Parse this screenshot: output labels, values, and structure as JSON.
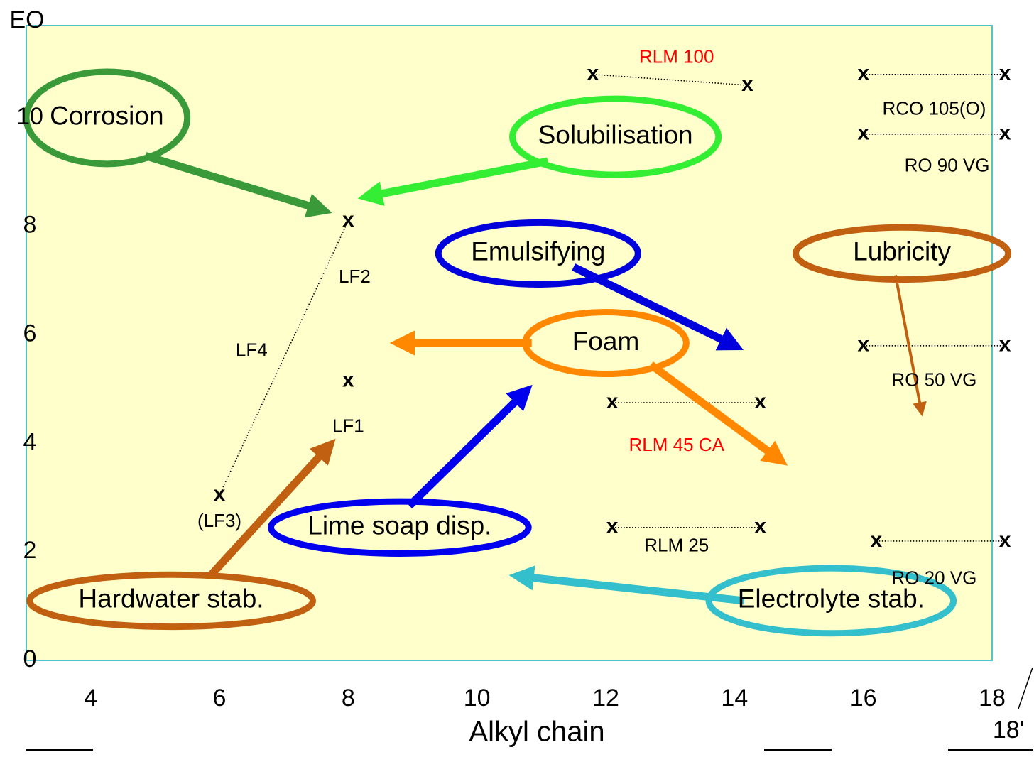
{
  "chart_data": {
    "type": "scatter",
    "xlabel": "Alkyl chain",
    "ylabel": "EO",
    "xlim": [
      3,
      18
    ],
    "ylim": [
      0,
      11.7
    ],
    "x_ticks": [
      "4",
      "6",
      "8",
      "10",
      "12",
      "14",
      "16",
      "18"
    ],
    "y_ticks": [
      "0",
      "2",
      "4",
      "6",
      "8",
      "10"
    ],
    "extra_tick_label": "18'",
    "grid": false,
    "background": "#ffffcc",
    "frame_color": "#4fc3c8",
    "marker": "x",
    "points": [
      {
        "x": 6,
        "y": 3.05
      },
      {
        "x": 8,
        "y": 8.1
      },
      {
        "x": 8,
        "y": 5.15
      },
      {
        "x": 11.8,
        "y": 10.8
      },
      {
        "x": 14.2,
        "y": 10.6
      },
      {
        "x": 16,
        "y": 10.8
      },
      {
        "x": 18.2,
        "y": 10.8
      },
      {
        "x": 16,
        "y": 9.7
      },
      {
        "x": 18.2,
        "y": 9.7
      },
      {
        "x": 16,
        "y": 5.8
      },
      {
        "x": 18.2,
        "y": 5.8
      },
      {
        "x": 12.1,
        "y": 4.75
      },
      {
        "x": 14.4,
        "y": 4.75
      },
      {
        "x": 12.1,
        "y": 2.45
      },
      {
        "x": 14.4,
        "y": 2.45
      },
      {
        "x": 16.2,
        "y": 2.2
      },
      {
        "x": 18.2,
        "y": 2.2
      }
    ],
    "series": [
      {
        "name": "LF4",
        "points": [
          [
            6,
            3.05
          ],
          [
            8,
            8.1
          ]
        ]
      },
      {
        "name": "RLM 100",
        "points": [
          [
            11.8,
            10.8
          ],
          [
            14.2,
            10.6
          ]
        ]
      },
      {
        "name": "RCO 105(O)",
        "points": [
          [
            16,
            10.8
          ],
          [
            18.2,
            10.8
          ]
        ]
      },
      {
        "name": "RO 90 VG",
        "points": [
          [
            16,
            9.7
          ],
          [
            18.2,
            9.7
          ]
        ]
      },
      {
        "name": "RO 50 VG",
        "points": [
          [
            16,
            5.8
          ],
          [
            18.2,
            5.8
          ]
        ]
      },
      {
        "name": "RLM 45 CA",
        "points": [
          [
            12.1,
            4.75
          ],
          [
            14.4,
            4.75
          ]
        ]
      },
      {
        "name": "RLM 25",
        "points": [
          [
            12.1,
            2.45
          ],
          [
            14.4,
            2.45
          ]
        ]
      },
      {
        "name": "RO 20 VG",
        "points": [
          [
            16.2,
            2.2
          ],
          [
            18.2,
            2.2
          ]
        ]
      }
    ],
    "point_labels": [
      {
        "text": "RLM 100",
        "x": 13.1,
        "y": 11.1,
        "color": "#ff0000"
      },
      {
        "text": "RCO 105(O)",
        "x": 17.1,
        "y": 10.15,
        "color": "#000000"
      },
      {
        "text": "RO 90 VG",
        "x": 17.3,
        "y": 9.1,
        "color": "#000000"
      },
      {
        "text": "LF2",
        "x": 8.1,
        "y": 7.05,
        "color": "#000000"
      },
      {
        "text": "LF4",
        "x": 6.5,
        "y": 5.7,
        "color": "#000000"
      },
      {
        "text": "LF1",
        "x": 8,
        "y": 4.3,
        "color": "#000000"
      },
      {
        "text": "RO 50 VG",
        "x": 17.1,
        "y": 5.15,
        "color": "#000000"
      },
      {
        "text": "RLM 45 CA",
        "x": 13.1,
        "y": 3.95,
        "color": "#ff0000"
      },
      {
        "text": "(LF3)",
        "x": 6,
        "y": 2.55,
        "color": "#000000"
      },
      {
        "text": "RLM 25",
        "x": 13.1,
        "y": 2.1,
        "color": "#000000"
      },
      {
        "text": "RO 20 VG",
        "x": 17.1,
        "y": 1.5,
        "color": "#000000"
      }
    ],
    "annotations": [
      {
        "text": "Corrosion",
        "color": "#3a9a3a",
        "ellipse": [
          4.25,
          10.0,
          1.25,
          0.85
        ],
        "arrow": [
          [
            4.85,
            9.3
          ],
          [
            7.6,
            8.3
          ]
        ]
      },
      {
        "text": "Solubilisation",
        "color": "#33ee33",
        "ellipse": [
          12.15,
          9.65,
          1.6,
          0.7
        ],
        "arrow": [
          [
            11.1,
            9.2
          ],
          [
            8.3,
            8.55
          ]
        ]
      },
      {
        "text": "Emulsifying",
        "color": "#0000dd",
        "ellipse": [
          10.95,
          7.5,
          1.55,
          0.57
        ],
        "arrow": [
          [
            11.5,
            7.25
          ],
          [
            14.0,
            5.8
          ]
        ]
      },
      {
        "text": "Lubricity",
        "color": "#c06010",
        "ellipse": [
          16.6,
          7.5,
          1.65,
          0.48
        ],
        "arrow": [
          [
            16.5,
            7.1
          ],
          [
            16.9,
            4.6
          ]
        ],
        "thin": true
      },
      {
        "text": "Foam",
        "color": "#ff8800",
        "ellipse": [
          12.0,
          5.85,
          1.25,
          0.57
        ],
        "arrow": [
          [
            10.85,
            5.85
          ],
          [
            8.8,
            5.85
          ]
        ],
        "arrow2": [
          [
            12.7,
            5.45
          ],
          [
            14.7,
            3.7
          ]
        ]
      },
      {
        "text": "Lime soap disp.",
        "color": "#0000ee",
        "ellipse": [
          8.8,
          2.45,
          2.0,
          0.48
        ],
        "arrow": [
          [
            8.95,
            2.85
          ],
          [
            10.75,
            4.95
          ]
        ]
      },
      {
        "text": "Hardwater stab.",
        "color": "#c06010",
        "ellipse": [
          5.25,
          1.1,
          2.2,
          0.48
        ],
        "arrow": [
          [
            5.85,
            1.55
          ],
          [
            7.7,
            3.95
          ]
        ]
      },
      {
        "text": "Electrolyte stab.",
        "color": "#33c0cc",
        "ellipse": [
          15.5,
          1.1,
          1.9,
          0.6
        ],
        "arrow": [
          [
            14.15,
            1.1
          ],
          [
            10.65,
            1.55
          ]
        ]
      }
    ]
  }
}
